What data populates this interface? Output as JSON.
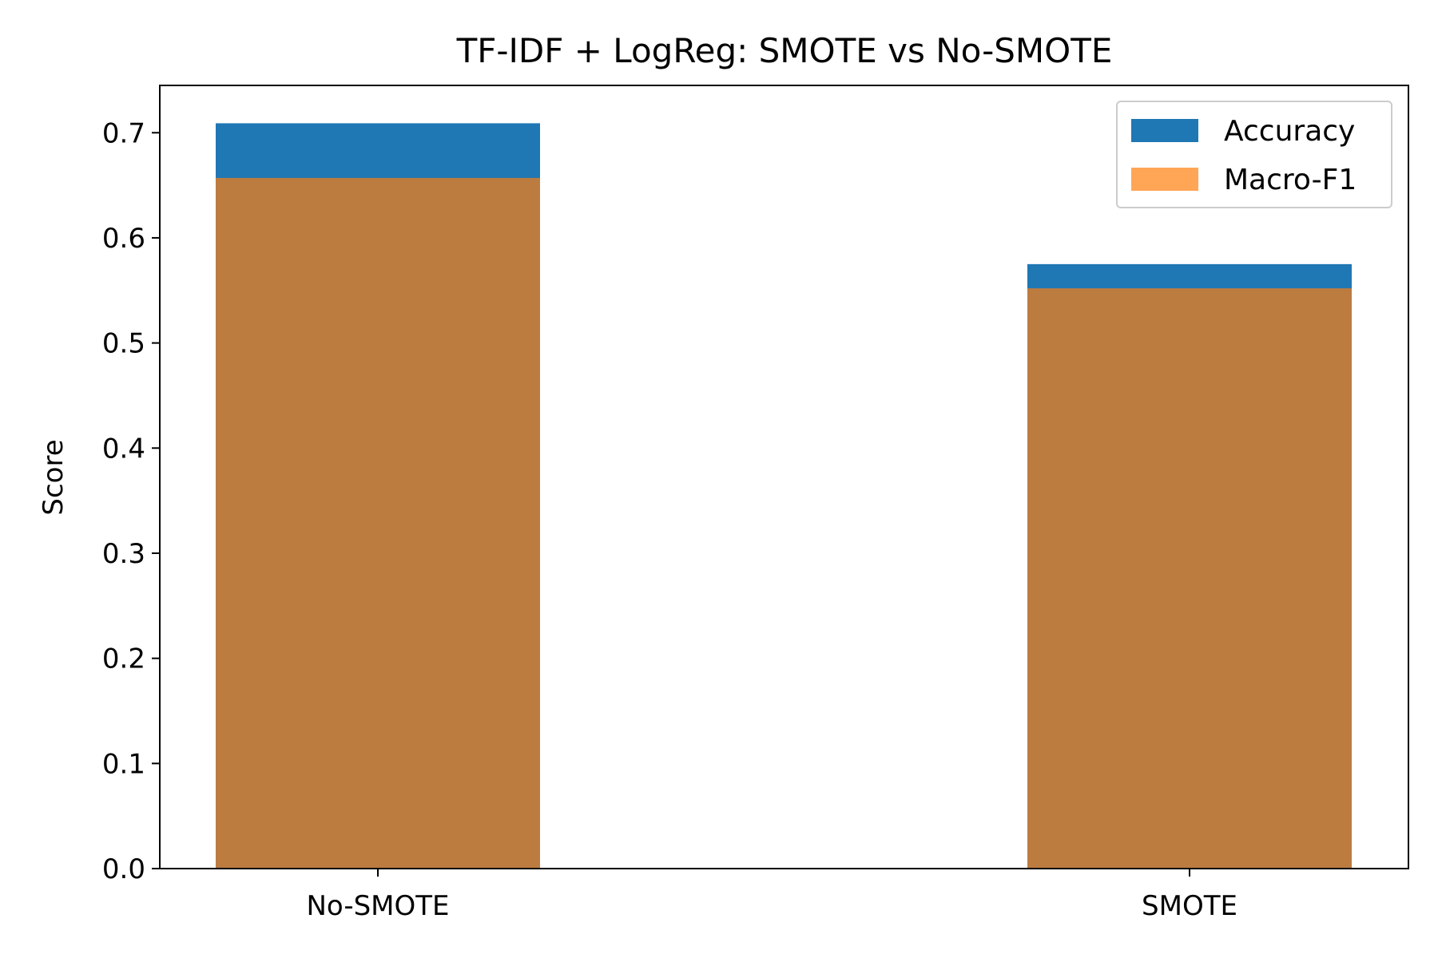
{
  "chart_data": {
    "type": "bar",
    "title": "TF-IDF + LogReg: SMOTE vs No-SMOTE",
    "xlabel": "",
    "ylabel": "Score",
    "categories": [
      "No-SMOTE",
      "SMOTE"
    ],
    "series": [
      {
        "name": "Accuracy",
        "values": [
          0.709,
          0.575
        ],
        "color": "#1f77b4",
        "opacity": 1
      },
      {
        "name": "Macro-F1",
        "values": [
          0.657,
          0.552
        ],
        "color": "#ff7f0e",
        "opacity": 0.7
      }
    ],
    "ylim": [
      0,
      0.745
    ],
    "yticks": [
      "0.0",
      "0.1",
      "0.2",
      "0.3",
      "0.4",
      "0.5",
      "0.6",
      "0.7"
    ],
    "grid": false,
    "legend": {
      "position": "top-right"
    }
  }
}
